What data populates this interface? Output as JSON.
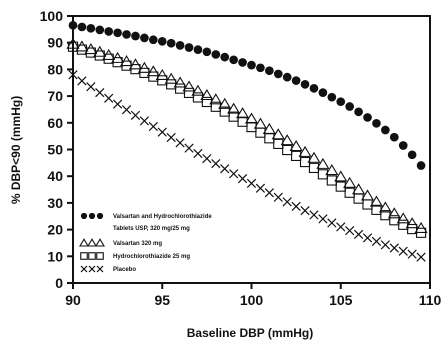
{
  "chart_data": {
    "type": "scatter",
    "title": "",
    "xlabel": "Baseline DBP (mmHg)",
    "ylabel": "% DBP<90 (mmHg)",
    "xlim": [
      90,
      110
    ],
    "ylim": [
      0,
      100
    ],
    "xticks": [
      "90",
      "95",
      "100",
      "105",
      "110"
    ],
    "yticks": [
      "0",
      "10",
      "20",
      "30",
      "40",
      "50",
      "60",
      "70",
      "80",
      "90",
      "100"
    ],
    "grid": false,
    "legend_position": "bottom-left",
    "x": [
      90,
      90.5,
      91,
      91.5,
      92,
      92.5,
      93,
      93.5,
      94,
      94.5,
      95,
      95.5,
      96,
      96.5,
      97,
      97.5,
      98,
      98.5,
      99,
      99.5,
      100,
      100.5,
      101,
      101.5,
      102,
      102.5,
      103,
      103.5,
      104,
      104.5,
      105,
      105.5,
      106,
      106.5,
      107,
      107.5,
      108,
      108.5,
      109,
      109.5
    ],
    "series": [
      {
        "name": "Valsartan and Hydrochlorothiazide Tablets USP, 320 mg/25 mg",
        "marker": "filled-circle",
        "values": [
          96.5,
          95.9,
          95.4,
          94.8,
          94.2,
          93.7,
          93.1,
          92.5,
          91.8,
          91.1,
          90.5,
          89.8,
          89,
          88.2,
          87.4,
          86.6,
          85.6,
          84.6,
          83.6,
          82.6,
          81.6,
          80.6,
          79.5,
          78.3,
          77.1,
          75.8,
          74.4,
          72.9,
          71.3,
          69.6,
          67.9,
          66.1,
          64.1,
          62,
          59.8,
          57.3,
          54.6,
          51.5,
          48,
          44
        ]
      },
      {
        "name": "Valsartan 320 mg",
        "marker": "open-triangle",
        "values": [
          89.5,
          88.5,
          87.5,
          86.5,
          85.3,
          84.2,
          83,
          81.8,
          80.5,
          79.2,
          77.8,
          76.4,
          75,
          73.5,
          71.9,
          70.3,
          68.7,
          67,
          65.2,
          63.5,
          61.5,
          59.6,
          57.6,
          55.6,
          53.4,
          51.2,
          49,
          46.8,
          44.5,
          42.2,
          39.8,
          37.4,
          35,
          32.7,
          30.4,
          28.2,
          26,
          24.1,
          22.3,
          20.5
        ]
      },
      {
        "name": "Hydrochlorothiazide 25 mg",
        "marker": "open-square",
        "values": [
          88.5,
          87.4,
          86.3,
          85.2,
          84,
          82.7,
          81.4,
          80.1,
          78.7,
          77.3,
          75.9,
          74.4,
          72.8,
          71.2,
          69.5,
          67.8,
          66,
          64.2,
          62.3,
          60.4,
          58.4,
          56.3,
          54.2,
          52.1,
          49.8,
          47.6,
          45.3,
          43.1,
          40.7,
          38.4,
          36.1,
          33.8,
          31.6,
          29.4,
          27.4,
          25.4,
          23.5,
          21.8,
          20.2,
          18.8
        ]
      },
      {
        "name": "Placebo",
        "marker": "x",
        "values": [
          78,
          75.7,
          73.5,
          71.3,
          69.2,
          67,
          64.9,
          62.8,
          60.7,
          58.6,
          56.5,
          54.5,
          52.5,
          50.5,
          48.5,
          46.6,
          44.7,
          42.8,
          40.9,
          39.1,
          37.3,
          35.5,
          33.8,
          32.1,
          30.4,
          28.7,
          27.1,
          25.5,
          24,
          22.5,
          21,
          19.6,
          18.2,
          16.9,
          15.6,
          14.3,
          13.1,
          11.9,
          10.8,
          9.7
        ]
      }
    ]
  },
  "legend": {
    "items": [
      {
        "line1": "Valsartan and Hydrochlorothiazide",
        "line2": "Tablets USP, 320 mg/25 mg",
        "marker": "filled-circle"
      },
      {
        "line1": "Valsartan 320 mg",
        "marker": "open-triangle"
      },
      {
        "line1": "Hydrochlorothiazide 25 mg",
        "marker": "open-square"
      },
      {
        "line1": "Placebo",
        "marker": "x"
      }
    ]
  }
}
